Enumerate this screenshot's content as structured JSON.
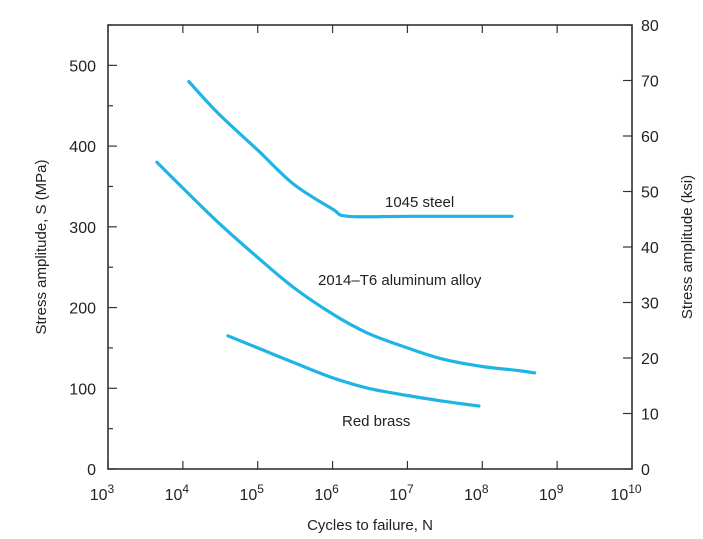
{
  "chart_data": {
    "type": "line",
    "xlabel": "Cycles to failure, N",
    "ylabel_left": "Stress amplitude, S (MPa)",
    "ylabel_right": "Stress amplitude (ksi)",
    "x_scale": "log",
    "xlim": [
      1000,
      10000000000
    ],
    "ylim_left": [
      0,
      550
    ],
    "ylim_right": [
      0,
      80
    ],
    "grid": false,
    "line_color": "#1fb4e6",
    "x_ticks": [
      {
        "base": "10",
        "exp": "3"
      },
      {
        "base": "10",
        "exp": "4"
      },
      {
        "base": "10",
        "exp": "5"
      },
      {
        "base": "10",
        "exp": "6"
      },
      {
        "base": "10",
        "exp": "7"
      },
      {
        "base": "10",
        "exp": "8"
      },
      {
        "base": "10",
        "exp": "9"
      },
      {
        "base": "10",
        "exp": "10"
      }
    ],
    "y_ticks_left": [
      "0",
      "100",
      "200",
      "300",
      "400",
      "500"
    ],
    "y_ticks_right": [
      "0",
      "10",
      "20",
      "30",
      "40",
      "50",
      "60",
      "70",
      "80"
    ],
    "series": [
      {
        "name": "1045 steel",
        "x": [
          12000,
          30000,
          100000,
          300000,
          1000000,
          1600000,
          10000000,
          100000000,
          250000000
        ],
        "y": [
          480,
          440,
          395,
          353,
          322,
          313,
          313,
          313,
          313
        ]
      },
      {
        "name": "2014–T6 aluminum alloy",
        "x": [
          4500,
          10000,
          30000,
          100000,
          300000,
          1000000,
          3000000,
          10000000,
          30000000,
          100000000,
          300000000,
          500000000
        ],
        "y": [
          380,
          348,
          305,
          262,
          225,
          192,
          168,
          150,
          136,
          127,
          122,
          119
        ]
      },
      {
        "name": "Red brass",
        "x": [
          40000,
          100000,
          300000,
          1000000,
          3000000,
          10000000,
          30000000,
          90000000
        ],
        "y": [
          165,
          150,
          132,
          113,
          100,
          91,
          84,
          78
        ]
      }
    ]
  }
}
